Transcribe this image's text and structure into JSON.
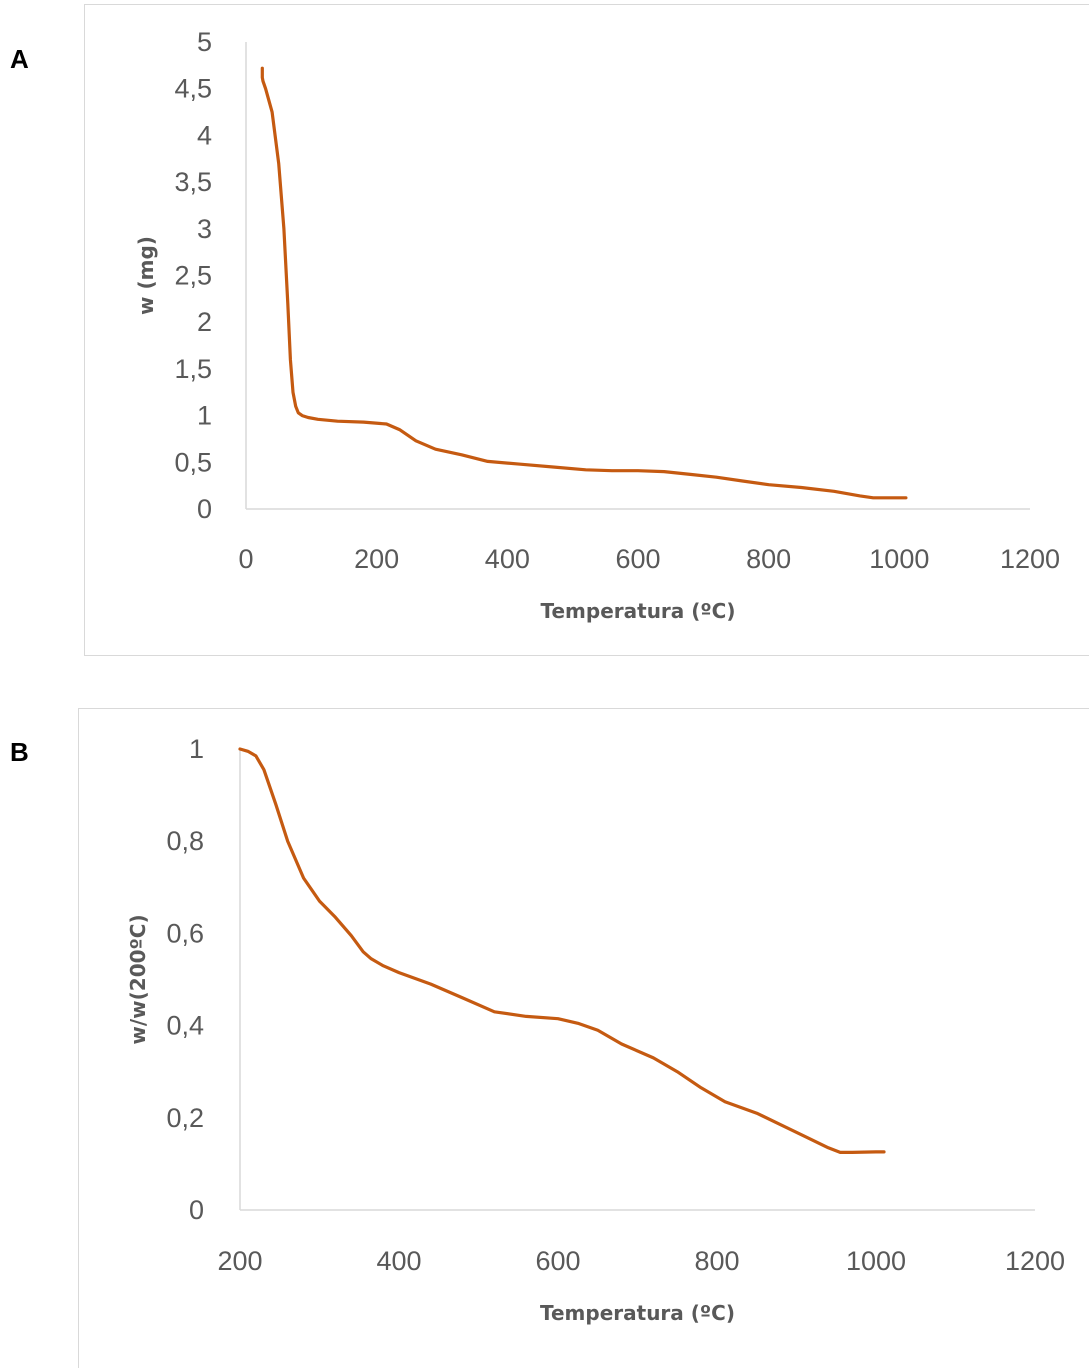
{
  "panels": [
    {
      "letter": "A"
    },
    {
      "letter": "B"
    }
  ],
  "chart_data": [
    {
      "type": "line",
      "xlabel": "Temperatura (ºC)",
      "ylabel": "w (mg)",
      "xlim": [
        0,
        1200
      ],
      "ylim": [
        0,
        5
      ],
      "xticks": [
        0,
        200,
        400,
        600,
        800,
        1000,
        1200
      ],
      "xtick_labels": [
        "0",
        "200",
        "400",
        "600",
        "800",
        "1000",
        "1200"
      ],
      "yticks": [
        0,
        0.5,
        1,
        1.5,
        2,
        2.5,
        3,
        3.5,
        4,
        4.5,
        5
      ],
      "ytick_labels": [
        "0",
        "0,5",
        "1",
        "1,5",
        "2",
        "2,5",
        "3",
        "3,5",
        "4",
        "4,5",
        "5"
      ],
      "line_color": "#C55A11",
      "series": [
        {
          "x": [
            25,
            25,
            26,
            30,
            40,
            50,
            58,
            64,
            68,
            72,
            76,
            80,
            86,
            95,
            110,
            140,
            180,
            215,
            235,
            260,
            290,
            330,
            370,
            420,
            470,
            520,
            560,
            600,
            640,
            680,
            720,
            760,
            800,
            850,
            900,
            940,
            960,
            980,
            1010
          ],
          "y": [
            4.72,
            4.62,
            4.58,
            4.5,
            4.25,
            3.7,
            3.0,
            2.2,
            1.6,
            1.25,
            1.1,
            1.03,
            1.0,
            0.98,
            0.96,
            0.94,
            0.93,
            0.91,
            0.85,
            0.73,
            0.64,
            0.58,
            0.51,
            0.48,
            0.45,
            0.42,
            0.41,
            0.41,
            0.4,
            0.37,
            0.34,
            0.3,
            0.26,
            0.23,
            0.19,
            0.14,
            0.12,
            0.12,
            0.12
          ]
        }
      ]
    },
    {
      "type": "line",
      "xlabel": "Temperatura (ºC)",
      "ylabel": "w/w(200ºC)",
      "xlim": [
        200,
        1200
      ],
      "ylim": [
        0,
        1
      ],
      "xticks": [
        200,
        400,
        600,
        800,
        1000,
        1200
      ],
      "xtick_labels": [
        "200",
        "400",
        "600",
        "800",
        "1000",
        "1200"
      ],
      "yticks": [
        0,
        0.2,
        0.4,
        0.6,
        0.8,
        1
      ],
      "ytick_labels": [
        "0",
        "0,2",
        "0,4",
        "0,6",
        "0,8",
        "1"
      ],
      "line_color": "#C55A11",
      "series": [
        {
          "x": [
            200,
            210,
            220,
            230,
            245,
            260,
            280,
            300,
            320,
            340,
            355,
            365,
            380,
            400,
            440,
            480,
            520,
            560,
            600,
            625,
            650,
            680,
            720,
            750,
            780,
            810,
            850,
            880,
            910,
            940,
            955,
            970,
            1000,
            1010
          ],
          "y": [
            1.0,
            0.995,
            0.985,
            0.955,
            0.88,
            0.8,
            0.72,
            0.67,
            0.635,
            0.595,
            0.56,
            0.545,
            0.53,
            0.515,
            0.49,
            0.46,
            0.43,
            0.42,
            0.415,
            0.405,
            0.39,
            0.36,
            0.33,
            0.3,
            0.265,
            0.235,
            0.21,
            0.185,
            0.16,
            0.135,
            0.125,
            0.125,
            0.126,
            0.126
          ]
        }
      ]
    }
  ]
}
